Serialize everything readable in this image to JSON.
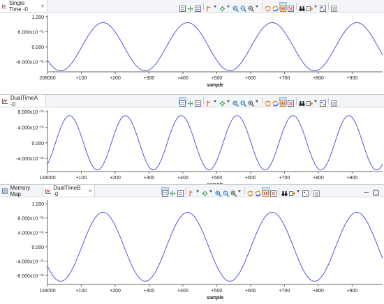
{
  "colors": {
    "signal": "#3b48d8",
    "axis": "#555555",
    "tab_bg": "#f3f5f8"
  },
  "toolbar_icons": [
    "chart-config-icon",
    "split-chart-icon",
    "legend-icon",
    "marker-icon",
    "pan-icon",
    "zoom-in-icon",
    "zoom-out-icon",
    "zoom-fit-icon",
    "refresh-icon",
    "sync-icon",
    "pause-icon",
    "clear-icon",
    "binoculars-icon",
    "export-icon",
    "settings-icon",
    "view-menu-icon"
  ],
  "panels": [
    {
      "tabs": [
        {
          "label": "Single Time -0",
          "active": true
        }
      ],
      "y_ticks": [
        "1.200",
        "6.000x10⁻⁰¹",
        "0.000",
        "-6.000x10⁻⁰¹"
      ],
      "x_ticks": [
        "208000",
        "+100",
        "+200",
        "+300",
        "+400",
        "+500",
        "+600",
        "+700",
        "+800",
        "+900"
      ],
      "xlabel": "sample",
      "chart_data": {
        "type": "line",
        "amplitude": 0.96,
        "ylim": [
          -1.0,
          1.25
        ],
        "period_samples": 250,
        "phase_deg": 146,
        "xlim": [
          0,
          990
        ],
        "x_start_label": "208000"
      }
    },
    {
      "tabs": [
        {
          "label": "DualTimeA -0",
          "active": true
        }
      ],
      "y_ticks": [
        "8.000x10⁻⁰¹",
        "4.000x10⁻⁰¹",
        "0.000",
        "-4.000x10⁻⁰¹"
      ],
      "x_ticks": [
        "144000",
        "+100",
        "+200",
        "+300",
        "+400",
        "+500",
        "+600",
        "+700",
        "+800",
        "+900"
      ],
      "xlabel": "sample",
      "chart_data": {
        "type": "line",
        "amplitude": 0.7,
        "ylim": [
          -0.74,
          0.84
        ],
        "period_samples": 165,
        "phase_deg": 52,
        "xlim": [
          0,
          990
        ],
        "x_start_label": "144000"
      }
    },
    {
      "tabs": [
        {
          "label": "Memory Map",
          "active": false
        },
        {
          "label": "DualTimeB -0",
          "active": true
        }
      ],
      "y_ticks": [
        "1.200",
        "8.000x10⁻⁰¹",
        "4.000x10⁻⁰¹",
        "0.000",
        "-4.000x10⁻⁰¹",
        "-8.000x10⁻⁰¹"
      ],
      "x_ticks": [
        "144000",
        "+100",
        "+200",
        "+300",
        "+400",
        "+500",
        "+600",
        "+700",
        "+800",
        "+900"
      ],
      "xlabel": "sample",
      "chart_data": {
        "type": "line",
        "amplitude": 0.96,
        "ylim": [
          -1.05,
          1.3
        ],
        "period_samples": 250,
        "phase_deg": 146,
        "xlim": [
          0,
          990
        ],
        "x_start_label": "144000"
      }
    }
  ]
}
